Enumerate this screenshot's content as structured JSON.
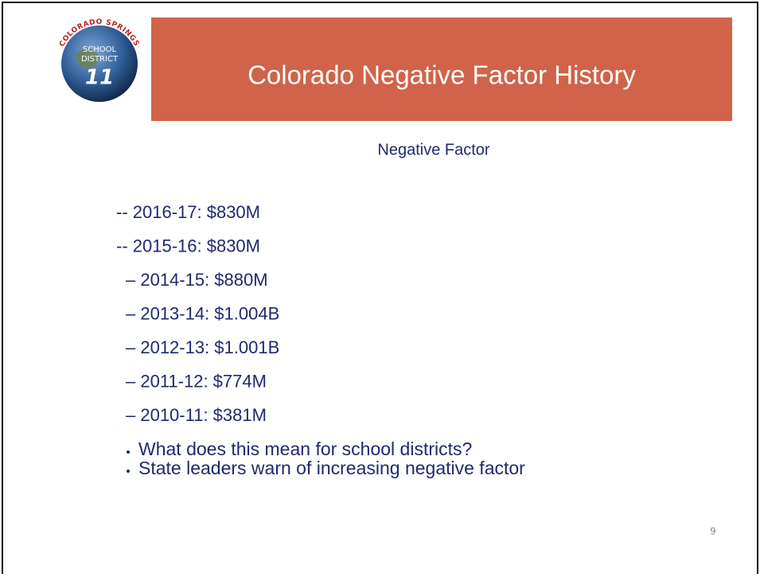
{
  "logo": {
    "ring_text": "COLORADO SPRINGS",
    "line1": "SCHOOL",
    "line2": "DISTRICT",
    "number": "11"
  },
  "title": "Colorado Negative Factor History",
  "subtitle": "Negative Factor",
  "items": [
    "-- 2016-17: $830M",
    "-- 2015-16: $830M",
    "– 2014-15: $880M",
    "– 2013-14: $1.004B",
    "– 2012-13: $1.001B",
    "– 2011-12: $774M",
    "– 2010-11: $381M"
  ],
  "bullets": [
    "What does this mean for  school districts?",
    "State leaders warn of increasing negative factor"
  ],
  "page_number": "9"
}
